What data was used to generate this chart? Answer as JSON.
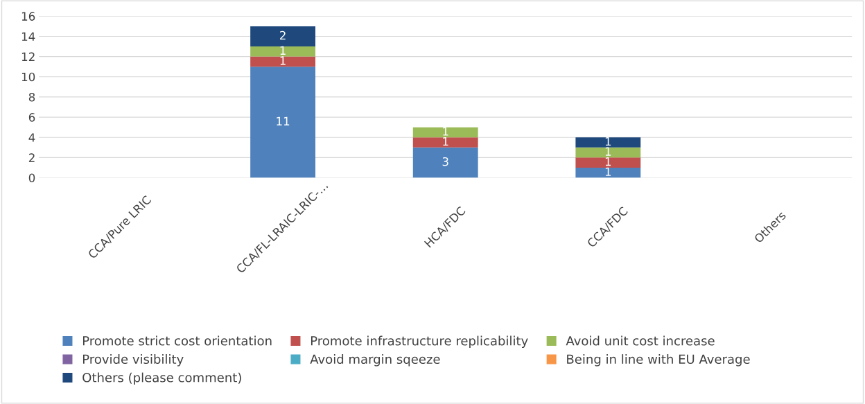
{
  "chart_data": {
    "type": "bar",
    "stacked": true,
    "categories": [
      "CCA/Pure LRIC",
      "CCA/FL-LRAIC-LRIC-…",
      "HCA/FDC",
      "CCA/FDC",
      "Others"
    ],
    "series": [
      {
        "name": "Promote strict cost orientation",
        "color": "#4f81bd",
        "values": [
          0,
          11,
          3,
          1,
          0
        ],
        "value_labels": [
          null,
          "11",
          "3",
          "1",
          null
        ]
      },
      {
        "name": "Promote infrastructure replicability",
        "color": "#c0504d",
        "values": [
          0,
          1,
          1,
          1,
          0
        ],
        "value_labels": [
          null,
          "1",
          "1",
          "1",
          null
        ]
      },
      {
        "name": "Avoid unit cost increase",
        "color": "#9bbb59",
        "values": [
          0,
          1,
          1,
          1,
          0
        ],
        "value_labels": [
          null,
          "1",
          "1",
          "1",
          null
        ]
      },
      {
        "name": "Provide visibility",
        "color": "#8064a2",
        "values": [
          0,
          0,
          0,
          0,
          0
        ]
      },
      {
        "name": "Avoid margin sqeeze",
        "color": "#4bacc6",
        "values": [
          0,
          0,
          0,
          0,
          0
        ]
      },
      {
        "name": "Being in line with EU Average",
        "color": "#f79646",
        "values": [
          0,
          0,
          0,
          0,
          0
        ]
      },
      {
        "name": "Others (please comment)",
        "color": "#1f497d",
        "values": [
          0,
          2,
          0,
          1,
          0
        ],
        "value_labels": [
          null,
          "2",
          null,
          "1",
          null
        ]
      }
    ],
    "ylim": [
      0,
      16
    ],
    "yticks": [
      0,
      2,
      4,
      6,
      8,
      10,
      12,
      14,
      16
    ],
    "grid": "y",
    "legend": "bottom"
  }
}
